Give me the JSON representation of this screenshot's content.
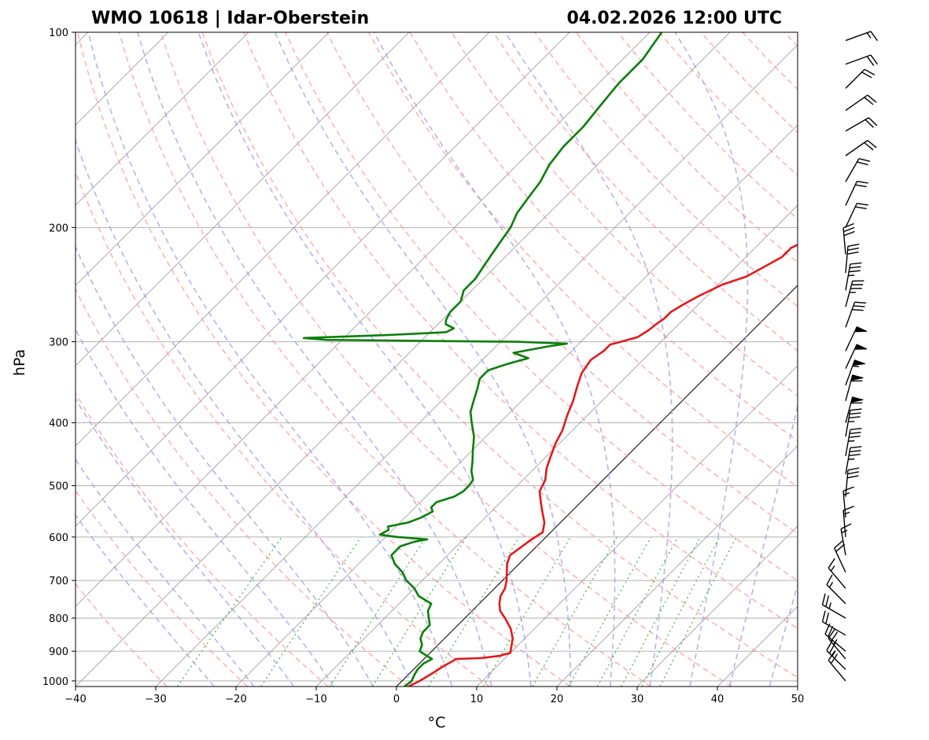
{
  "header": {
    "station": "WMO 10618 | Idar-Oberstein",
    "datetime": "04.02.2026 12:00 UTC"
  },
  "chart_data": {
    "type": "line",
    "subtype": "skew-T log-P diagram",
    "xlabel": "°C",
    "ylabel": "hPa",
    "xlim": [
      -40,
      50
    ],
    "ylim": [
      1020,
      100
    ],
    "log_y": true,
    "x_ticks": [
      -40,
      -30,
      -20,
      -10,
      0,
      10,
      20,
      30,
      40,
      50
    ],
    "x_tick_labels": [
      "−40",
      "−30",
      "−20",
      "−10",
      "0",
      "10",
      "20",
      "30",
      "40",
      "50"
    ],
    "y_ticks": [
      1000,
      900,
      800,
      700,
      600,
      500,
      400,
      300,
      200,
      100
    ],
    "y_tick_labels": [
      "1000",
      "900",
      "800",
      "700",
      "600",
      "500",
      "400",
      "300",
      "200",
      "100"
    ],
    "grid": true,
    "colors": {
      "temperature": "#e31a1c",
      "dewpoint": "#0a7f0a",
      "dry_adiabat": "#ff9a9a",
      "moist_adiabat": "#9a9af0",
      "mixing_ratio": "#4caf4c",
      "isotherm": "#888888",
      "zero_isotherm": "#000000",
      "isobar": "#b0b0b0",
      "wind_barb": "#000000"
    },
    "series": [
      {
        "key": "temperature",
        "points": [
          [
            1020,
            1.5
          ],
          [
            1000,
            2.2
          ],
          [
            970,
            2.9
          ],
          [
            950,
            3.3
          ],
          [
            930,
            3.9
          ],
          [
            925,
            3.9
          ],
          [
            922,
            7.0
          ],
          [
            915,
            9.0
          ],
          [
            905,
            10.0
          ],
          [
            890,
            9.5
          ],
          [
            860,
            8.5
          ],
          [
            830,
            7.0
          ],
          [
            800,
            5.0
          ],
          [
            780,
            3.5
          ],
          [
            760,
            2.5
          ],
          [
            740,
            1.7
          ],
          [
            720,
            1.3
          ],
          [
            700,
            0.5
          ],
          [
            680,
            -0.5
          ],
          [
            660,
            -1.5
          ],
          [
            640,
            -2.2
          ],
          [
            620,
            -1.8
          ],
          [
            605,
            -1.5
          ],
          [
            590,
            -1.0
          ],
          [
            570,
            -2.0
          ],
          [
            550,
            -3.5
          ],
          [
            530,
            -5.0
          ],
          [
            510,
            -6.5
          ],
          [
            490,
            -7.2
          ],
          [
            470,
            -8.5
          ],
          [
            450,
            -9.5
          ],
          [
            430,
            -10.5
          ],
          [
            410,
            -11.3
          ],
          [
            390,
            -12.5
          ],
          [
            370,
            -13.6
          ],
          [
            350,
            -15.0
          ],
          [
            335,
            -16.0
          ],
          [
            320,
            -16.5
          ],
          [
            310,
            -16.0
          ],
          [
            303,
            -16.0
          ],
          [
            300,
            -15.0
          ],
          [
            295,
            -13.5
          ],
          [
            288,
            -13.0
          ],
          [
            282,
            -12.8
          ],
          [
            276,
            -12.5
          ],
          [
            270,
            -12.5
          ],
          [
            262,
            -11.8
          ],
          [
            255,
            -11.0
          ],
          [
            245,
            -9.5
          ],
          [
            238,
            -7.5
          ],
          [
            230,
            -6.5
          ],
          [
            222,
            -5.5
          ],
          [
            215,
            -5.5
          ],
          [
            208,
            -4.2
          ],
          [
            200,
            -3.5
          ],
          [
            190,
            -2.5
          ],
          [
            180,
            -1.5
          ],
          [
            172,
            -1.0
          ],
          [
            165,
            0.0
          ],
          [
            158,
            1.0
          ],
          [
            150,
            1.5
          ],
          [
            142,
            2.0
          ],
          [
            135,
            2.2
          ],
          [
            128,
            2.0
          ],
          [
            120,
            1.6
          ],
          [
            115,
            2.4
          ],
          [
            110,
            3.8
          ],
          [
            106,
            4.3
          ],
          [
            103,
            5.0
          ],
          [
            100,
            5.5
          ]
        ]
      },
      {
        "key": "dewpoint",
        "points": [
          [
            1020,
            1.0
          ],
          [
            1000,
            1.2
          ],
          [
            980,
            0.8
          ],
          [
            960,
            0.5
          ],
          [
            940,
            0.5
          ],
          [
            925,
            1.0
          ],
          [
            900,
            -1.5
          ],
          [
            880,
            -2.0
          ],
          [
            860,
            -3.0
          ],
          [
            840,
            -3.5
          ],
          [
            820,
            -3.5
          ],
          [
            800,
            -4.5
          ],
          [
            780,
            -5.5
          ],
          [
            760,
            -6.0
          ],
          [
            740,
            -8.5
          ],
          [
            720,
            -10.0
          ],
          [
            700,
            -12.0
          ],
          [
            680,
            -13.5
          ],
          [
            660,
            -15.5
          ],
          [
            640,
            -17.0
          ],
          [
            620,
            -17.0
          ],
          [
            610,
            -15.8
          ],
          [
            605,
            -14.5
          ],
          [
            600,
            -18.5
          ],
          [
            595,
            -21.0
          ],
          [
            585,
            -20.5
          ],
          [
            578,
            -21.0
          ],
          [
            570,
            -19.0
          ],
          [
            560,
            -18.0
          ],
          [
            548,
            -17.3
          ],
          [
            540,
            -18.0
          ],
          [
            530,
            -18.0
          ],
          [
            520,
            -16.5
          ],
          [
            510,
            -16.0
          ],
          [
            500,
            -16.0
          ],
          [
            490,
            -16.2
          ],
          [
            475,
            -17.5
          ],
          [
            460,
            -18.5
          ],
          [
            440,
            -20.0
          ],
          [
            420,
            -21.5
          ],
          [
            400,
            -23.5
          ],
          [
            385,
            -25.0
          ],
          [
            370,
            -26.0
          ],
          [
            355,
            -27.0
          ],
          [
            342,
            -28.0
          ],
          [
            332,
            -28.0
          ],
          [
            325,
            -26.5
          ],
          [
            318,
            -24.5
          ],
          [
            312,
            -27.0
          ],
          [
            308,
            -25.0
          ],
          [
            305,
            -23.5
          ],
          [
            302,
            -21.5
          ],
          [
            300,
            -28.0
          ],
          [
            298,
            -52.0
          ],
          [
            296,
            -55.0
          ],
          [
            293,
            -45.0
          ],
          [
            290,
            -38.0
          ],
          [
            286,
            -37.5
          ],
          [
            282,
            -39.0
          ],
          [
            278,
            -39.5
          ],
          [
            270,
            -40.0
          ],
          [
            260,
            -40.0
          ],
          [
            250,
            -41.0
          ],
          [
            240,
            -41.0
          ],
          [
            230,
            -41.5
          ],
          [
            220,
            -42.0
          ],
          [
            210,
            -42.5
          ],
          [
            200,
            -43.0
          ],
          [
            190,
            -44.0
          ],
          [
            180,
            -44.5
          ],
          [
            170,
            -45.0
          ],
          [
            160,
            -46.0
          ],
          [
            150,
            -46.5
          ],
          [
            140,
            -46.5
          ],
          [
            130,
            -47.0
          ],
          [
            120,
            -47.5
          ],
          [
            110,
            -47.5
          ],
          [
            105,
            -48.0
          ],
          [
            100,
            -48.5
          ]
        ]
      }
    ],
    "wind_barbs": [
      {
        "p": 1000,
        "dir": 320,
        "spd": 20
      },
      {
        "p": 960,
        "dir": 315,
        "spd": 25
      },
      {
        "p": 925,
        "dir": 320,
        "spd": 25
      },
      {
        "p": 900,
        "dir": 310,
        "spd": 20
      },
      {
        "p": 850,
        "dir": 300,
        "spd": 20
      },
      {
        "p": 800,
        "dir": 300,
        "spd": 25
      },
      {
        "p": 760,
        "dir": 315,
        "spd": 15
      },
      {
        "p": 720,
        "dir": 320,
        "spd": 15
      },
      {
        "p": 680,
        "dir": 335,
        "spd": 20
      },
      {
        "p": 640,
        "dir": 350,
        "spd": 15
      },
      {
        "p": 600,
        "dir": 355,
        "spd": 15
      },
      {
        "p": 560,
        "dir": 355,
        "spd": 15
      },
      {
        "p": 520,
        "dir": 5,
        "spd": 30
      },
      {
        "p": 480,
        "dir": 10,
        "spd": 35
      },
      {
        "p": 450,
        "dir": 10,
        "spd": 35
      },
      {
        "p": 420,
        "dir": 10,
        "spd": 35
      },
      {
        "p": 400,
        "dir": 15,
        "spd": 60
      },
      {
        "p": 370,
        "dir": 15,
        "spd": 60
      },
      {
        "p": 350,
        "dir": 20,
        "spd": 55
      },
      {
        "p": 330,
        "dir": 25,
        "spd": 50
      },
      {
        "p": 310,
        "dir": 25,
        "spd": 50
      },
      {
        "p": 285,
        "dir": 20,
        "spd": 30
      },
      {
        "p": 265,
        "dir": 15,
        "spd": 35
      },
      {
        "p": 250,
        "dir": 10,
        "spd": 35
      },
      {
        "p": 235,
        "dir": 5,
        "spd": 30
      },
      {
        "p": 220,
        "dir": 355,
        "spd": 30
      },
      {
        "p": 200,
        "dir": 25,
        "spd": 20
      },
      {
        "p": 185,
        "dir": 25,
        "spd": 20
      },
      {
        "p": 170,
        "dir": 30,
        "spd": 20
      },
      {
        "p": 155,
        "dir": 55,
        "spd": 20
      },
      {
        "p": 142,
        "dir": 60,
        "spd": 20
      },
      {
        "p": 132,
        "dir": 55,
        "spd": 20
      },
      {
        "p": 122,
        "dir": 45,
        "spd": 20
      },
      {
        "p": 112,
        "dir": 70,
        "spd": 20
      },
      {
        "p": 103,
        "dir": 70,
        "spd": 15
      }
    ]
  }
}
